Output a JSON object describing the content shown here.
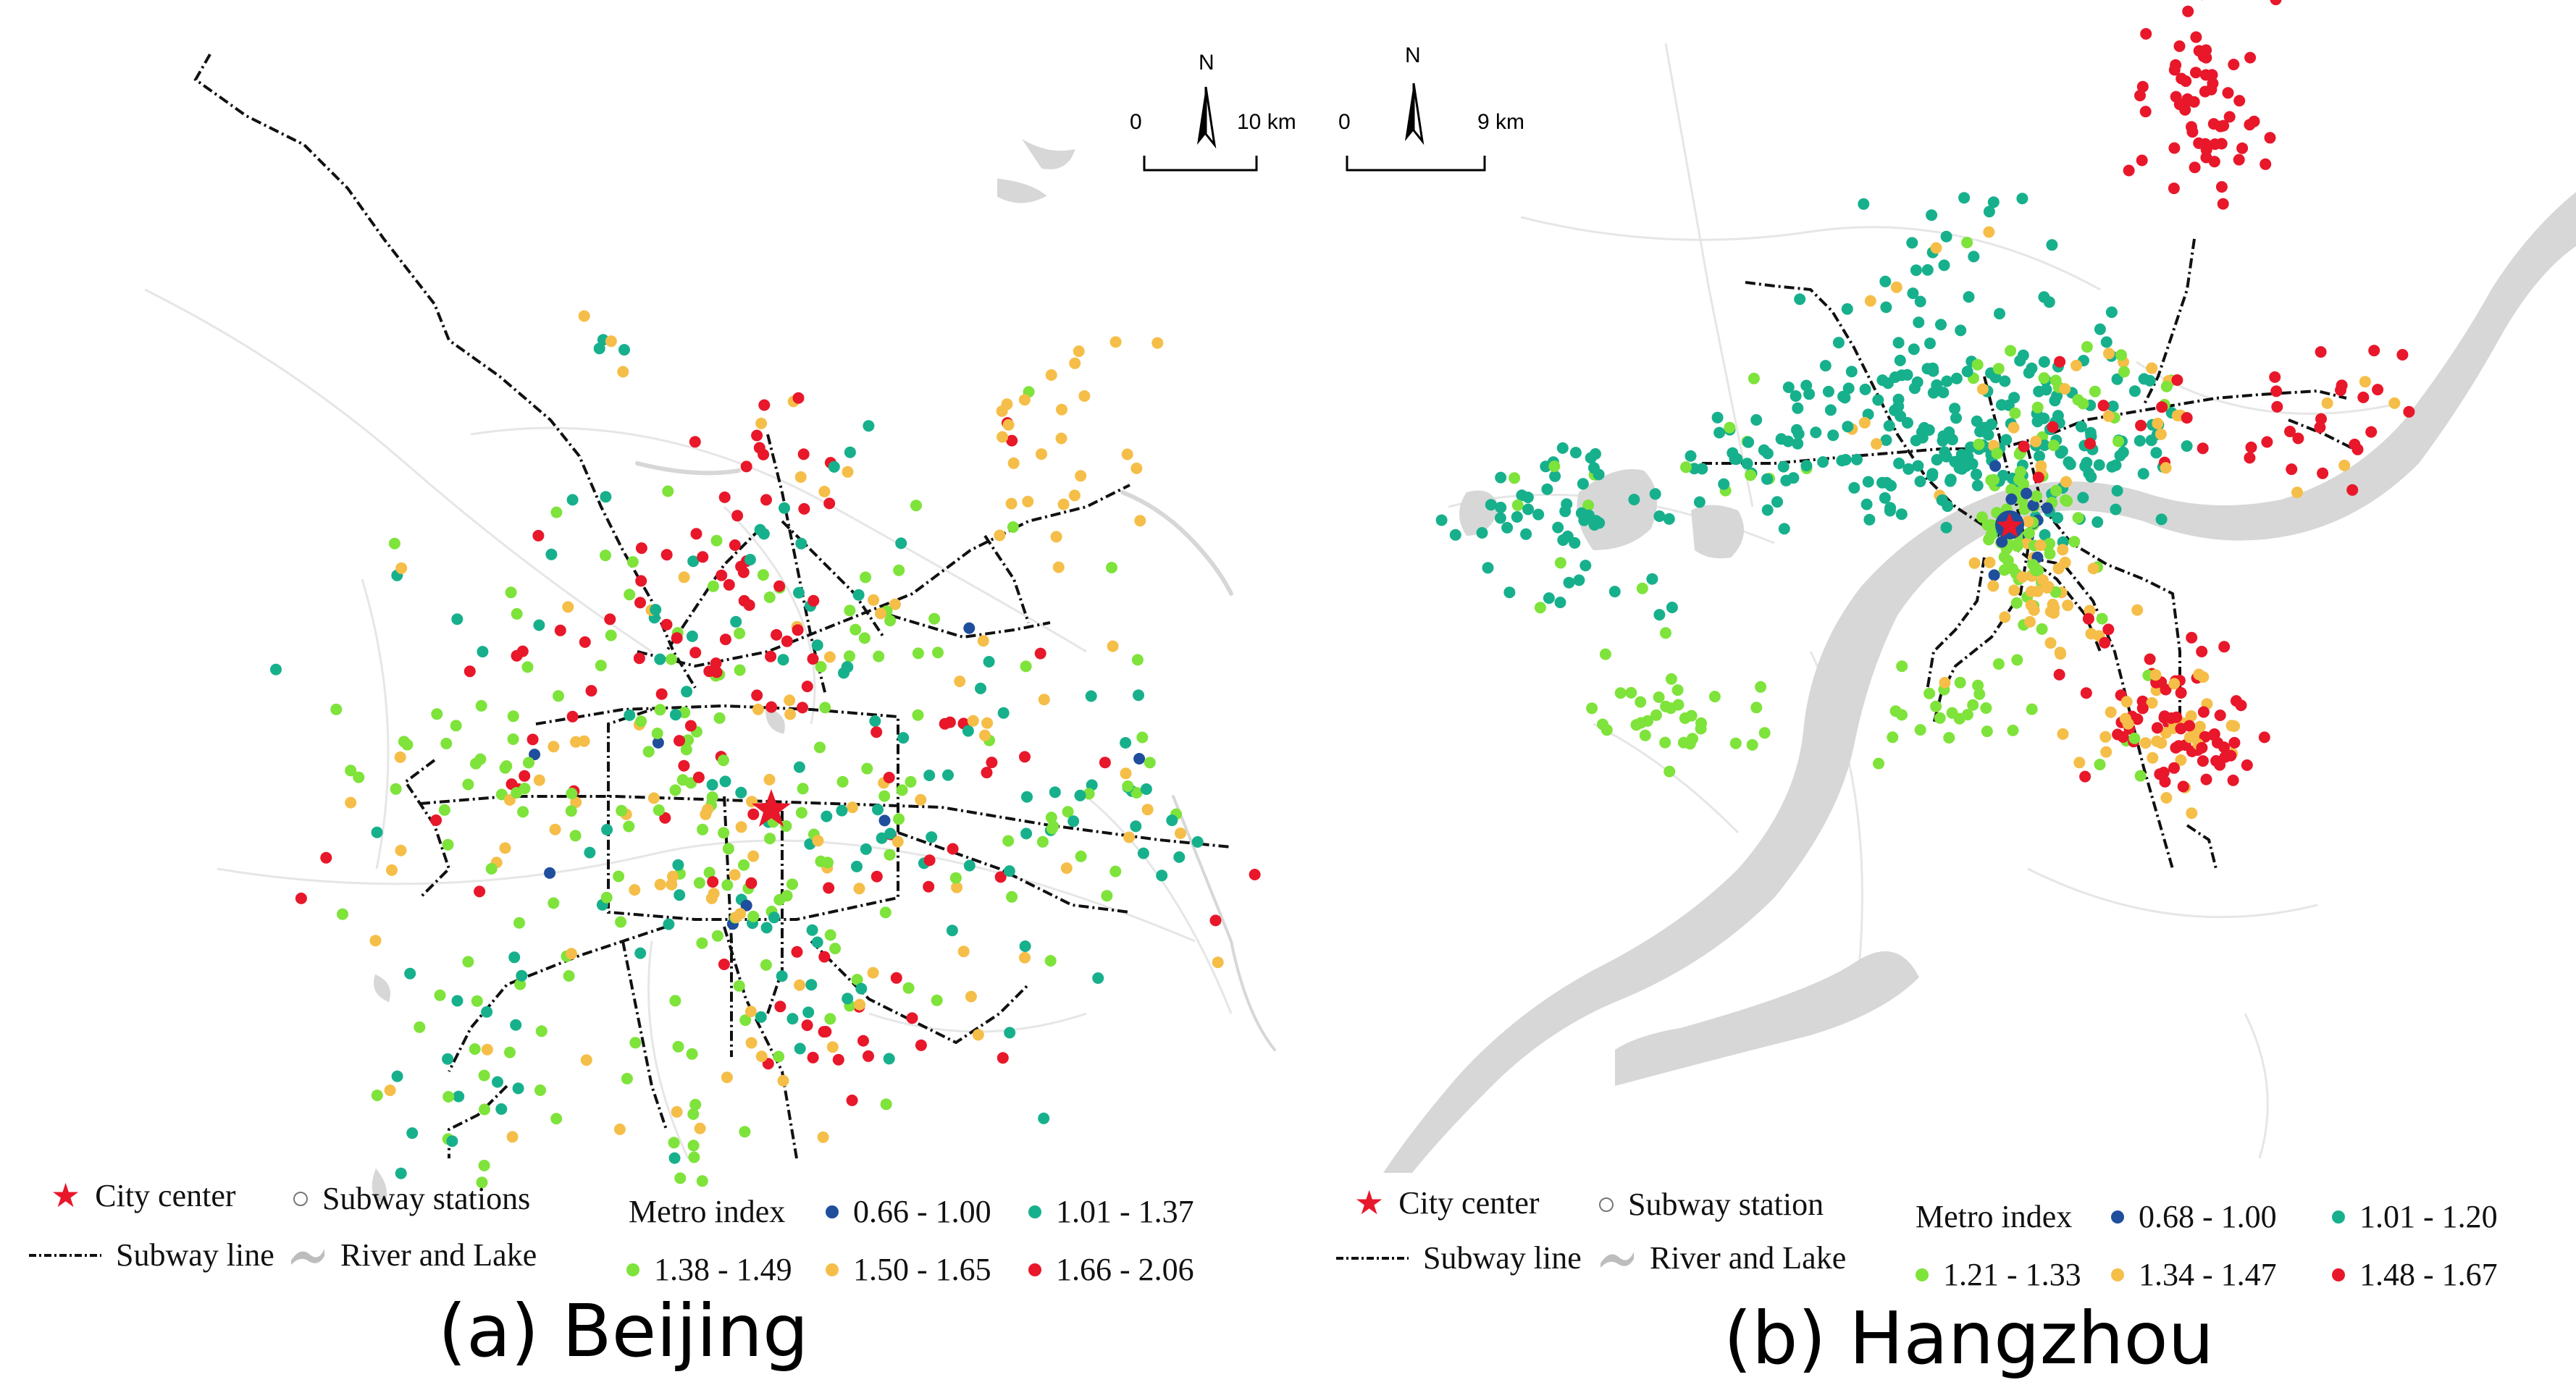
{
  "colors": {
    "class1": "#1f4e9c",
    "class2": "#17b08c",
    "class3": "#7ee33a",
    "class4": "#f5be48",
    "class5": "#e8172a",
    "river": "#d7d7d7",
    "roads": "#e6e6e6",
    "subway": "#111111",
    "city_center": "#e8172a"
  },
  "panels": [
    {
      "id": "beijing",
      "caption": "(a) Beijing",
      "legend": {
        "city_center": "City center",
        "stations": "Subway stations",
        "subway_line": "Subway line",
        "river": "River and Lake",
        "metro_index": "Metro index",
        "classes": [
          "0.66 - 1.00",
          "1.01 - 1.37",
          "1.38 - 1.49",
          "1.50 - 1.65",
          "1.66 - 2.06"
        ]
      },
      "scale": {
        "zero": "0",
        "distance": "10 km",
        "north": "N"
      }
    },
    {
      "id": "hangzhou",
      "caption": "(b) Hangzhou",
      "legend": {
        "city_center": "City center",
        "stations": "Subway station",
        "subway_line": "Subway line",
        "river": "River and Lake",
        "metro_index": "Metro index",
        "classes": [
          "0.68 - 1.00",
          "1.01 - 1.20",
          "1.21 - 1.33",
          "1.34 - 1.47",
          "1.48 - 1.67"
        ]
      },
      "scale": {
        "zero": "0",
        "distance": "9 km",
        "north": "N"
      }
    }
  ]
}
